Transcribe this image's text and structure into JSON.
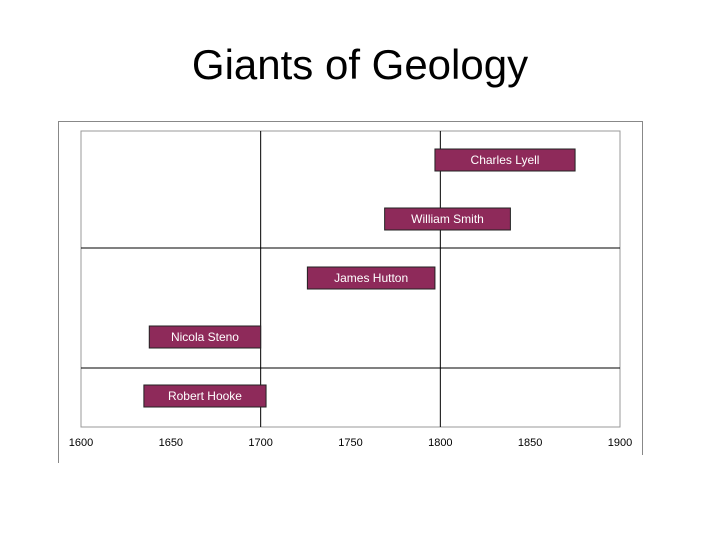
{
  "chart_data": {
    "type": "timeline",
    "title": "Giants of Geology",
    "color": "#8e2a5a",
    "items": [
      {
        "label": "Charles Lyell",
        "start": 1797,
        "end": 1875
      },
      {
        "label": "William Smith",
        "start": 1769,
        "end": 1839
      },
      {
        "label": "James Hutton",
        "start": 1726,
        "end": 1797
      },
      {
        "label": "Nicola Steno",
        "start": 1638,
        "end": 1700
      },
      {
        "label": "Robert Hooke",
        "start": 1635,
        "end": 1703
      }
    ],
    "xlim": [
      1600,
      1900
    ],
    "xticks": [
      1600,
      1650,
      1700,
      1750,
      1800,
      1850,
      1900
    ]
  }
}
